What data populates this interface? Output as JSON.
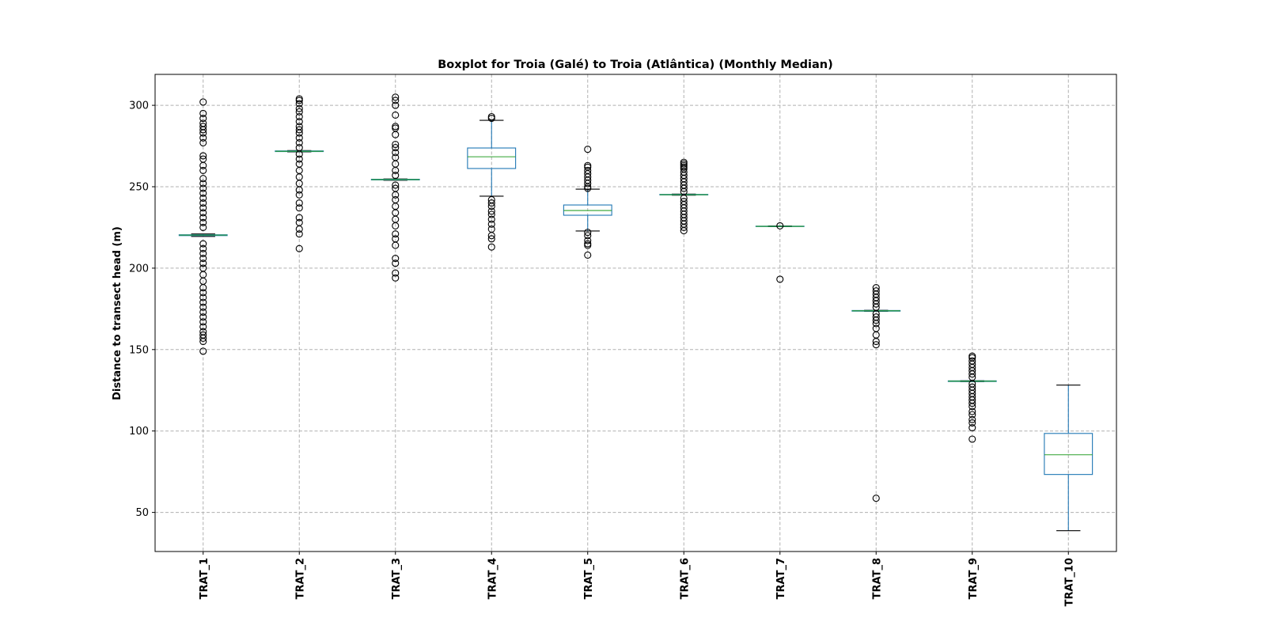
{
  "chart_data": {
    "type": "boxplot",
    "title": "Boxplot for Troia (Galé) to Troia (Atlântica) (Monthly Median)",
    "y_label": "Distance to transect head (m)",
    "categories": [
      "TRAT_1",
      "TRAT_2",
      "TRAT_3",
      "TRAT_4",
      "TRAT_5",
      "TRAT_6",
      "TRAT_7",
      "TRAT_8",
      "TRAT_9",
      "TRAT_10"
    ],
    "box_color": "#1f77b4",
    "median_color": "#2ca02c",
    "flier_color": "#000000",
    "ylim": [
      26,
      319
    ],
    "yticks": [
      50,
      100,
      150,
      200,
      250,
      300
    ],
    "grid": true,
    "boxes": [
      {
        "whislo": 219.5,
        "q1": 220,
        "med": 220.3,
        "q3": 220.5,
        "whishi": 221,
        "fliers": [
          149,
          155,
          157,
          159,
          161,
          164,
          167,
          170,
          173,
          176,
          179,
          182,
          185,
          188,
          192,
          196,
          200,
          203,
          206,
          209,
          212,
          215,
          225,
          228,
          231,
          234,
          237,
          240,
          243,
          246,
          249,
          252,
          255,
          260,
          263,
          267,
          269,
          277,
          280,
          283,
          285,
          287,
          289,
          292,
          295,
          302
        ]
      },
      {
        "whislo": 271.4,
        "q1": 271.6,
        "med": 271.8,
        "q3": 272,
        "whishi": 272.2,
        "fliers": [
          212,
          221,
          224,
          228,
          231,
          237,
          240,
          245,
          248,
          252,
          256,
          260,
          264,
          267,
          270,
          274,
          277,
          280,
          283,
          285,
          287,
          290,
          293,
          296,
          298,
          301,
          303,
          304
        ]
      },
      {
        "whislo": 254,
        "q1": 254.2,
        "med": 254.4,
        "q3": 254.6,
        "whishi": 254.8,
        "fliers": [
          194,
          197,
          203,
          206,
          214,
          218,
          221,
          226,
          230,
          234,
          238,
          242,
          245,
          249,
          251,
          257,
          260,
          264,
          268,
          271,
          274,
          276,
          282,
          286,
          287,
          294,
          300,
          303,
          305
        ]
      },
      {
        "whislo": 244.2,
        "q1": 261.2,
        "med": 268.4,
        "q3": 273.8,
        "whishi": 290.8,
        "fliers": [
          213,
          218,
          220,
          224,
          227,
          230,
          233,
          235,
          238,
          240,
          242,
          292,
          293
        ]
      },
      {
        "whislo": 222.8,
        "q1": 232.5,
        "med": 235.4,
        "q3": 238.8,
        "whishi": 248.5,
        "fliers": [
          208,
          214,
          215,
          217,
          220,
          222,
          249,
          250,
          252,
          254,
          256,
          258,
          260,
          262,
          263,
          273
        ]
      },
      {
        "whislo": 244.8,
        "q1": 245,
        "med": 245.1,
        "q3": 245.3,
        "whishi": 245.5,
        "fliers": [
          223,
          225,
          227,
          229,
          231,
          233,
          235,
          237,
          239,
          241,
          243,
          247,
          249,
          251,
          253,
          255,
          257,
          259,
          261,
          262,
          263,
          264,
          265
        ]
      },
      {
        "whislo": 225.5,
        "q1": 225.6,
        "med": 225.7,
        "q3": 225.8,
        "whishi": 225.9,
        "fliers": [
          193.2,
          226
        ]
      },
      {
        "whislo": 173.5,
        "q1": 173.6,
        "med": 173.8,
        "q3": 174,
        "whishi": 174.1,
        "fliers": [
          58.7,
          153,
          155,
          159,
          163,
          166,
          168,
          170,
          172,
          176,
          178,
          180,
          182,
          184,
          186,
          188
        ]
      },
      {
        "whislo": 130.3,
        "q1": 130.4,
        "med": 130.6,
        "q3": 130.8,
        "whishi": 130.9,
        "fliers": [
          95,
          102,
          105,
          107,
          110,
          112,
          115,
          117,
          119,
          121,
          123,
          125,
          127,
          129,
          133,
          135,
          137,
          139,
          141,
          143,
          145,
          146
        ]
      },
      {
        "whislo": 38.8,
        "q1": 73.3,
        "med": 85.4,
        "q3": 98.5,
        "whishi": 128.2,
        "fliers": []
      }
    ]
  }
}
